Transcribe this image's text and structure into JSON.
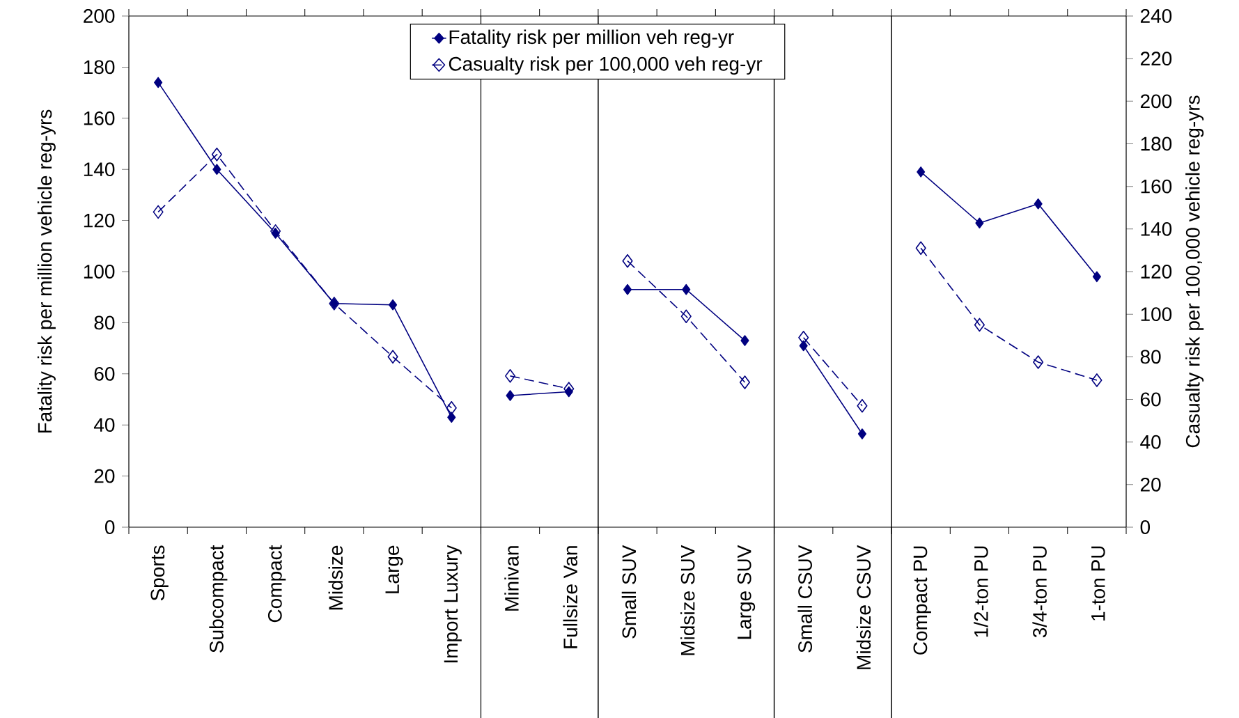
{
  "chart_data": {
    "type": "line",
    "categories": [
      "Sports",
      "Subcompact",
      "Compact",
      "Midsize",
      "Large",
      "Import Luxury",
      "Minivan",
      "Fullsize Van",
      "Small SUV",
      "Midsize SUV",
      "Large SUV",
      "Small CSUV",
      "Midsize CSUV",
      "Compact PU",
      "1/2-ton PU",
      "3/4-ton PU",
      "1-ton PU"
    ],
    "series": [
      {
        "name": "Fatality risk per million veh reg-yr",
        "color": "#000080",
        "marker": "diamond",
        "line_style": "solid",
        "values": [
          174,
          140,
          115,
          87.5,
          87,
          43,
          51.5,
          53,
          93,
          93,
          73,
          71,
          36.5,
          139,
          119,
          126.5,
          98
        ]
      },
      {
        "name": "Casualty risk per 100,000 veh reg-yr",
        "color": "#000080",
        "marker": "diamond",
        "line_style": "dashed",
        "axis": "y2",
        "values": [
          148,
          175,
          139,
          105,
          80,
          56,
          71,
          65,
          125,
          99,
          68,
          89,
          57,
          131,
          95,
          77.5,
          69
        ]
      }
    ],
    "ylabel": "Fatality risk per million vehicle reg-yrs",
    "y2label": "Casualty risk per 100,000 vehicle reg-yrs",
    "ylim": [
      0,
      200
    ],
    "yticks": [
      0,
      20,
      40,
      60,
      80,
      100,
      120,
      140,
      160,
      180,
      200
    ],
    "y2lim": [
      0,
      240
    ],
    "y2ticks": [
      0,
      20,
      40,
      60,
      80,
      100,
      120,
      140,
      160,
      180,
      200,
      220,
      240
    ],
    "legend": "top",
    "grid": false
  }
}
